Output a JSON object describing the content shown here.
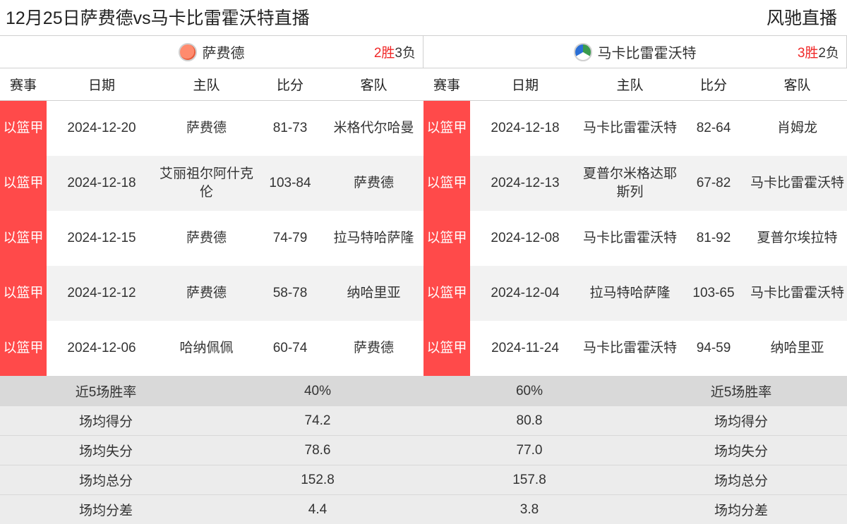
{
  "header": {
    "title": "12月25日萨费德vs马卡比雷霍沃特直播",
    "brand": "风驰直播"
  },
  "columns": {
    "league": "赛事",
    "date": "日期",
    "home": "主队",
    "score": "比分",
    "away": "客队"
  },
  "league_badge": "以篮甲",
  "colors": {
    "badge_bg": "#ff4a4a",
    "win_text": "#f02828",
    "alt_row": "#f2f2f2",
    "summary_first": "#d9d9d9",
    "summary_bg": "#ececec"
  },
  "left": {
    "team": "萨费德",
    "record_wins": "2胜",
    "record_losses": "3负",
    "matches": [
      {
        "date": "2024-12-20",
        "home": "萨费德",
        "score": "81-73",
        "away": "米格代尔哈曼"
      },
      {
        "date": "2024-12-18",
        "home": "艾丽祖尔阿什克伦",
        "score": "103-84",
        "away": "萨费德"
      },
      {
        "date": "2024-12-15",
        "home": "萨费德",
        "score": "74-79",
        "away": "拉马特哈萨隆"
      },
      {
        "date": "2024-12-12",
        "home": "萨费德",
        "score": "58-78",
        "away": "纳哈里亚"
      },
      {
        "date": "2024-12-06",
        "home": "哈纳佩佩",
        "score": "60-74",
        "away": "萨费德"
      }
    ],
    "summary": [
      {
        "label": "近5场胜率",
        "value": "40%"
      },
      {
        "label": "场均得分",
        "value": "74.2"
      },
      {
        "label": "场均失分",
        "value": "78.6"
      },
      {
        "label": "场均总分",
        "value": "152.8"
      },
      {
        "label": "场均分差",
        "value": "4.4"
      }
    ]
  },
  "right": {
    "team": "马卡比雷霍沃特",
    "record_wins": "3胜",
    "record_losses": "2负",
    "matches": [
      {
        "date": "2024-12-18",
        "home": "马卡比雷霍沃特",
        "score": "82-64",
        "away": "肖姆龙"
      },
      {
        "date": "2024-12-13",
        "home": "夏普尔米格达耶斯列",
        "score": "67-82",
        "away": "马卡比雷霍沃特"
      },
      {
        "date": "2024-12-08",
        "home": "马卡比雷霍沃特",
        "score": "81-92",
        "away": "夏普尔埃拉特"
      },
      {
        "date": "2024-12-04",
        "home": "拉马特哈萨隆",
        "score": "103-65",
        "away": "马卡比雷霍沃特"
      },
      {
        "date": "2024-11-24",
        "home": "马卡比雷霍沃特",
        "score": "94-59",
        "away": "纳哈里亚"
      }
    ],
    "summary": [
      {
        "label": "近5场胜率",
        "value": "60%"
      },
      {
        "label": "场均得分",
        "value": "80.8"
      },
      {
        "label": "场均失分",
        "value": "77.0"
      },
      {
        "label": "场均总分",
        "value": "157.8"
      },
      {
        "label": "场均分差",
        "value": "3.8"
      }
    ]
  }
}
